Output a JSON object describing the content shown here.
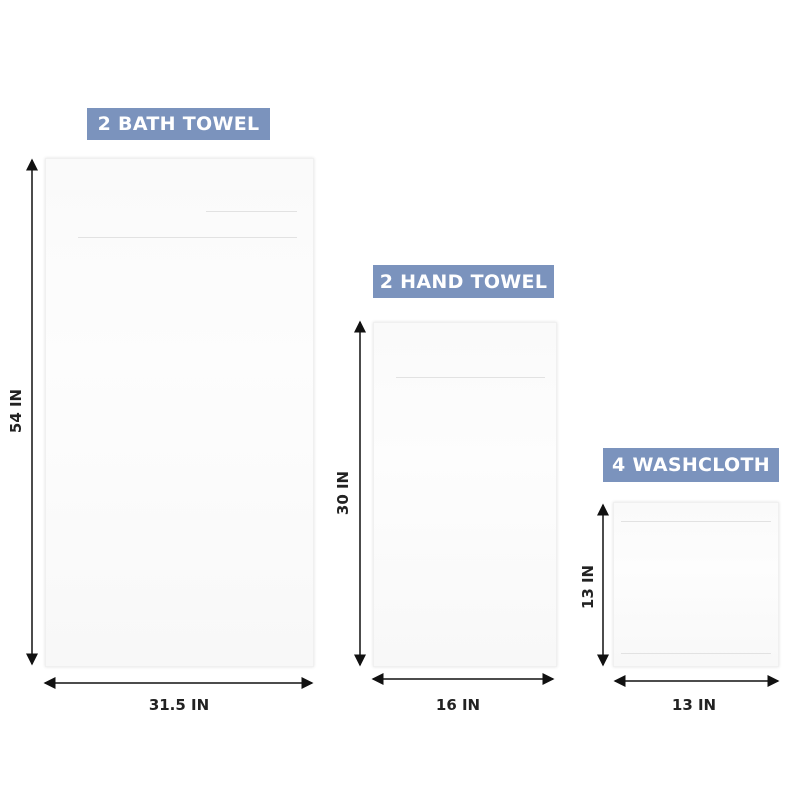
{
  "items": [
    {
      "label": "2 BATH TOWEL",
      "height": "54 IN",
      "width": "31.5 IN"
    },
    {
      "label": "2 HAND TOWEL",
      "height": "30 IN",
      "width": "16 IN"
    },
    {
      "label": "4 WASHCLOTH",
      "height": "13 IN",
      "width": "13 IN"
    }
  ],
  "colors": {
    "label_bg": "#7b93bd",
    "arrow": "#111111"
  }
}
